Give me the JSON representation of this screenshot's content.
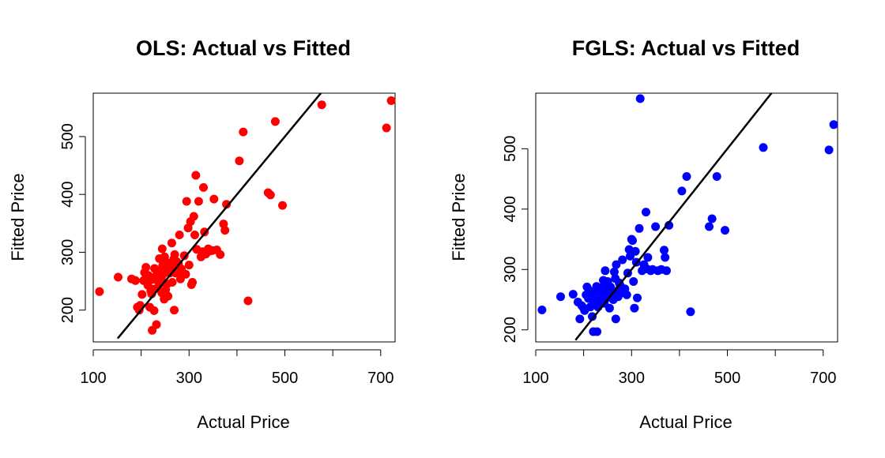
{
  "colors": {
    "ols": "#ff0000",
    "fgls": "#0000ff",
    "fit_line": "#000000",
    "axis": "#000000"
  },
  "chart_data": [
    {
      "type": "scatter",
      "title": "OLS: Actual vs Fitted",
      "xlabel": "Actual Price",
      "ylabel": "Fitted Price",
      "xlim": [
        100,
        730
      ],
      "ylim": [
        145,
        575
      ],
      "xticks": [
        100,
        200,
        300,
        400,
        500,
        600,
        700
      ],
      "xtick_labels": [
        "100",
        "",
        "300",
        "",
        "500",
        "",
        "700"
      ],
      "yticks": [
        200,
        300,
        400,
        500
      ],
      "ytick_labels": [
        "200",
        "300",
        "400",
        "500"
      ],
      "reference_line": {
        "type": "identity",
        "from": 151,
        "to": 600
      },
      "point_color": "#ff0000",
      "points": [
        [
          113,
          232
        ],
        [
          152,
          257
        ],
        [
          180,
          254
        ],
        [
          188,
          251
        ],
        [
          192,
          205
        ],
        [
          196,
          200
        ],
        [
          198,
          208
        ],
        [
          202,
          227
        ],
        [
          205,
          251
        ],
        [
          207,
          265
        ],
        [
          210,
          274
        ],
        [
          212,
          252
        ],
        [
          214,
          243
        ],
        [
          215,
          260
        ],
        [
          218,
          205
        ],
        [
          220,
          233
        ],
        [
          222,
          228
        ],
        [
          223,
          165
        ],
        [
          224,
          253
        ],
        [
          226,
          236
        ],
        [
          227,
          199
        ],
        [
          228,
          272
        ],
        [
          230,
          258
        ],
        [
          232,
          175
        ],
        [
          233,
          262
        ],
        [
          234,
          238
        ],
        [
          236,
          254
        ],
        [
          237,
          245
        ],
        [
          238,
          289
        ],
        [
          240,
          268
        ],
        [
          241,
          255
        ],
        [
          243,
          230
        ],
        [
          244,
          306
        ],
        [
          245,
          277
        ],
        [
          246,
          262
        ],
        [
          247,
          248
        ],
        [
          248,
          219
        ],
        [
          249,
          292
        ],
        [
          250,
          272
        ],
        [
          251,
          235
        ],
        [
          252,
          283
        ],
        [
          254,
          245
        ],
        [
          256,
          224
        ],
        [
          258,
          278
        ],
        [
          260,
          264
        ],
        [
          262,
          275
        ],
        [
          264,
          316
        ],
        [
          265,
          248
        ],
        [
          266,
          282
        ],
        [
          268,
          288
        ],
        [
          269,
          200
        ],
        [
          270,
          296
        ],
        [
          272,
          264
        ],
        [
          274,
          284
        ],
        [
          276,
          269
        ],
        [
          278,
          280
        ],
        [
          280,
          330
        ],
        [
          282,
          254
        ],
        [
          284,
          271
        ],
        [
          286,
          261
        ],
        [
          290,
          294
        ],
        [
          293,
          262
        ],
        [
          295,
          388
        ],
        [
          298,
          342
        ],
        [
          300,
          278
        ],
        [
          303,
          353
        ],
        [
          305,
          244
        ],
        [
          307,
          248
        ],
        [
          310,
          362
        ],
        [
          312,
          330
        ],
        [
          314,
          433
        ],
        [
          316,
          305
        ],
        [
          320,
          388
        ],
        [
          325,
          292
        ],
        [
          328,
          301
        ],
        [
          330,
          412
        ],
        [
          332,
          335
        ],
        [
          335,
          297
        ],
        [
          340,
          306
        ],
        [
          343,
          302
        ],
        [
          348,
          303
        ],
        [
          352,
          392
        ],
        [
          358,
          304
        ],
        [
          365,
          296
        ],
        [
          372,
          349
        ],
        [
          375,
          338
        ],
        [
          378,
          383
        ],
        [
          405,
          458
        ],
        [
          413,
          508
        ],
        [
          423,
          216
        ],
        [
          465,
          403
        ],
        [
          470,
          399
        ],
        [
          480,
          526
        ],
        [
          495,
          381
        ],
        [
          577,
          555
        ],
        [
          712,
          515
        ],
        [
          722,
          562
        ]
      ]
    },
    {
      "type": "scatter",
      "title": "FGLS: Actual vs Fitted",
      "xlabel": "Actual Price",
      "ylabel": "Fitted Price",
      "xlim": [
        100,
        730
      ],
      "ylim": [
        180,
        592
      ],
      "xticks": [
        100,
        200,
        300,
        400,
        500,
        600,
        700
      ],
      "xtick_labels": [
        "100",
        "",
        "300",
        "",
        "500",
        "",
        "700"
      ],
      "yticks": [
        200,
        300,
        400,
        500
      ],
      "ytick_labels": [
        "200",
        "300",
        "400",
        "500"
      ],
      "reference_line": {
        "type": "identity",
        "from": 183,
        "to": 600
      },
      "point_color": "#0000ff",
      "points": [
        [
          113,
          233
        ],
        [
          152,
          255
        ],
        [
          178,
          259
        ],
        [
          188,
          246
        ],
        [
          192,
          218
        ],
        [
          196,
          240
        ],
        [
          200,
          236
        ],
        [
          202,
          232
        ],
        [
          205,
          258
        ],
        [
          207,
          271
        ],
        [
          210,
          252
        ],
        [
          212,
          265
        ],
        [
          214,
          238
        ],
        [
          216,
          258
        ],
        [
          218,
          222
        ],
        [
          220,
          197
        ],
        [
          222,
          245
        ],
        [
          224,
          262
        ],
        [
          226,
          248
        ],
        [
          227,
          272
        ],
        [
          228,
          197
        ],
        [
          230,
          238
        ],
        [
          232,
          265
        ],
        [
          234,
          245
        ],
        [
          236,
          252
        ],
        [
          238,
          270
        ],
        [
          240,
          261
        ],
        [
          241,
          282
        ],
        [
          243,
          244
        ],
        [
          244,
          257
        ],
        [
          245,
          298
        ],
        [
          246,
          275
        ],
        [
          248,
          253
        ],
        [
          249,
          266
        ],
        [
          250,
          280
        ],
        [
          252,
          258
        ],
        [
          254,
          236
        ],
        [
          256,
          271
        ],
        [
          258,
          262
        ],
        [
          260,
          265
        ],
        [
          262,
          250
        ],
        [
          264,
          296
        ],
        [
          266,
          285
        ],
        [
          267,
          218
        ],
        [
          268,
          308
        ],
        [
          270,
          264
        ],
        [
          272,
          255
        ],
        [
          274,
          278
        ],
        [
          276,
          274
        ],
        [
          278,
          270
        ],
        [
          281,
          316
        ],
        [
          283,
          262
        ],
        [
          286,
          268
        ],
        [
          290,
          258
        ],
        [
          292,
          294
        ],
        [
          295,
          333
        ],
        [
          297,
          322
        ],
        [
          300,
          350
        ],
        [
          302,
          348
        ],
        [
          304,
          280
        ],
        [
          306,
          236
        ],
        [
          308,
          330
        ],
        [
          310,
          312
        ],
        [
          312,
          253
        ],
        [
          316,
          368
        ],
        [
          318,
          583
        ],
        [
          322,
          298
        ],
        [
          326,
          308
        ],
        [
          330,
          395
        ],
        [
          332,
          301
        ],
        [
          334,
          320
        ],
        [
          340,
          298
        ],
        [
          344,
          300
        ],
        [
          350,
          371
        ],
        [
          355,
          298
        ],
        [
          362,
          300
        ],
        [
          368,
          332
        ],
        [
          370,
          320
        ],
        [
          373,
          298
        ],
        [
          378,
          373
        ],
        [
          405,
          430
        ],
        [
          415,
          454
        ],
        [
          423,
          230
        ],
        [
          462,
          371
        ],
        [
          468,
          384
        ],
        [
          478,
          454
        ],
        [
          495,
          365
        ],
        [
          575,
          502
        ],
        [
          712,
          498
        ],
        [
          722,
          540
        ]
      ]
    }
  ]
}
